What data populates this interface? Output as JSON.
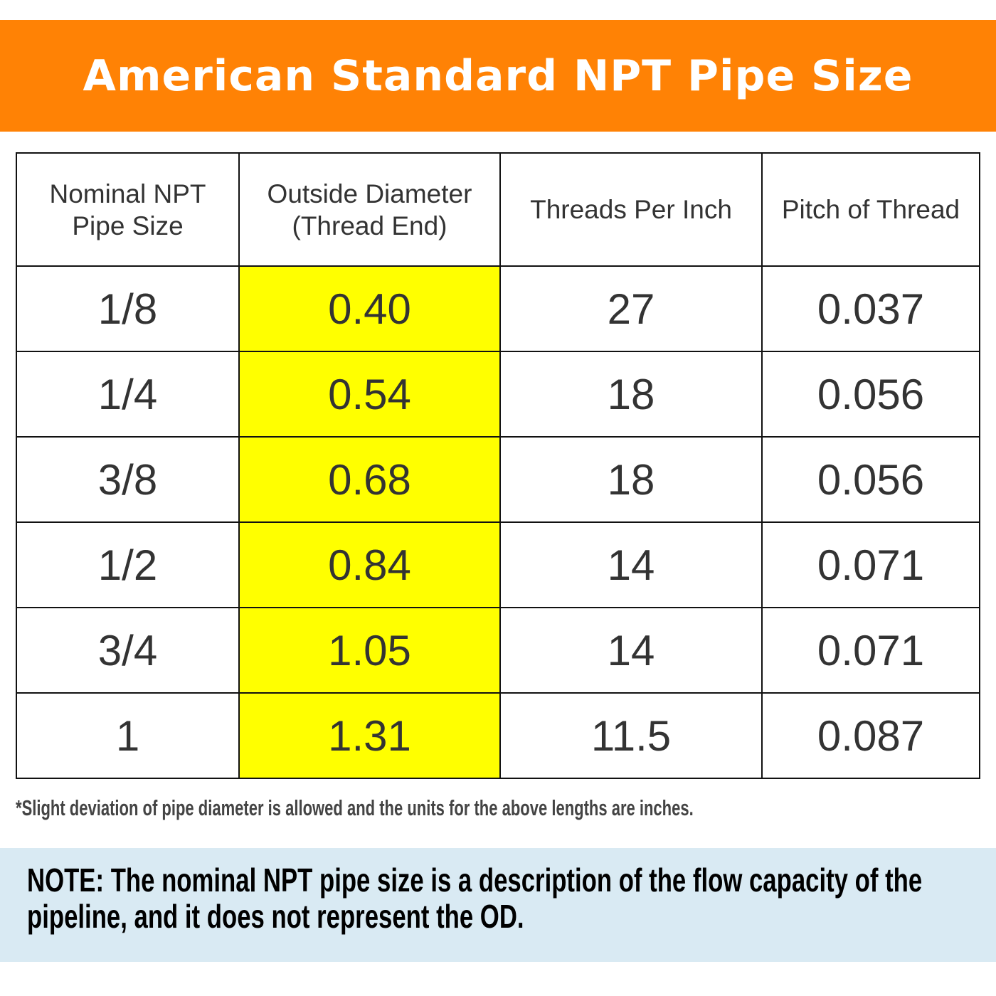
{
  "title": "American Standard NPT Pipe Size",
  "table": {
    "headers": [
      "Nominal NPT\nPipe Size",
      "Outside Diameter\n(Thread End)",
      "Threads Per Inch",
      "Pitch of Thread"
    ],
    "rows": [
      [
        "1/8",
        "0.40",
        "27",
        "0.037"
      ],
      [
        "1/4",
        "0.54",
        "18",
        "0.056"
      ],
      [
        "3/8",
        "0.68",
        "18",
        "0.056"
      ],
      [
        "1/2",
        "0.84",
        "14",
        "0.071"
      ],
      [
        "3/4",
        "1.05",
        "14",
        "0.071"
      ],
      [
        "1",
        "1.31",
        "11.5",
        "0.087"
      ]
    ],
    "highlight_color": "#FFFF00"
  },
  "footnote": "*Slight deviation of pipe diameter is allowed and the units for the above lengths are inches.",
  "note": "NOTE: The nominal NPT pipe size is a description of the flow capacity of the pipeline, and it does not represent the OD.",
  "colors": {
    "banner": "#FF8205",
    "note_background": "#D9EAF3"
  }
}
